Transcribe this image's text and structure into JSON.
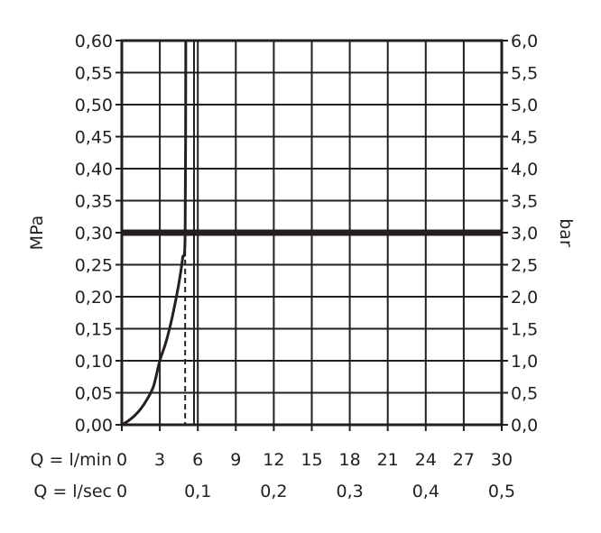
{
  "chart_data": {
    "type": "line",
    "title": "",
    "ylabel_left": "MPa",
    "ylabel_right": "bar",
    "y_left": {
      "min": 0,
      "max": 0.6,
      "step": 0.05,
      "tick_labels": [
        "0,00",
        "0,05",
        "0,10",
        "0,15",
        "0,20",
        "0,25",
        "0,30",
        "0,35",
        "0,40",
        "0,45",
        "0,50",
        "0,55",
        "0,60"
      ]
    },
    "y_right": {
      "min": 0,
      "max": 6,
      "step": 0.5,
      "tick_labels": [
        "0,0",
        "0,5",
        "1,0",
        "1,5",
        "2,0",
        "2,5",
        "3,0",
        "3,5",
        "4,0",
        "4,5",
        "5,0",
        "5,5",
        "6,0"
      ]
    },
    "x_lmin": {
      "label": "Q = l/min",
      "min": 0,
      "max": 30,
      "ticks": [
        0,
        3,
        6,
        9,
        12,
        15,
        18,
        21,
        24,
        27,
        30
      ],
      "tick_labels": [
        "0",
        "3",
        "6",
        "9",
        "12",
        "15",
        "18",
        "21",
        "24",
        "27",
        "30"
      ]
    },
    "x_lsec": {
      "label": "Q = l/sec",
      "ticks": [
        0,
        0.1,
        0.2,
        0.3,
        0.4,
        0.5
      ],
      "tick_labels": [
        "0",
        "0,1",
        "0,2",
        "0,3",
        "0,4",
        "0,5"
      ]
    },
    "grid": true,
    "reference_line_mpa": 0.3,
    "vertical_line_lmin": 5.7,
    "dashed_drop_lmin": 5.0,
    "series": [
      {
        "x": [
          0,
          0.5,
          1,
          1.5,
          2,
          2.5,
          3,
          3.5,
          4,
          4.5,
          4.8,
          5.0,
          5.05
        ],
        "y": [
          0,
          0.006,
          0.014,
          0.025,
          0.04,
          0.06,
          0.1,
          0.13,
          0.17,
          0.22,
          0.26,
          0.3,
          0.6
        ]
      }
    ]
  }
}
